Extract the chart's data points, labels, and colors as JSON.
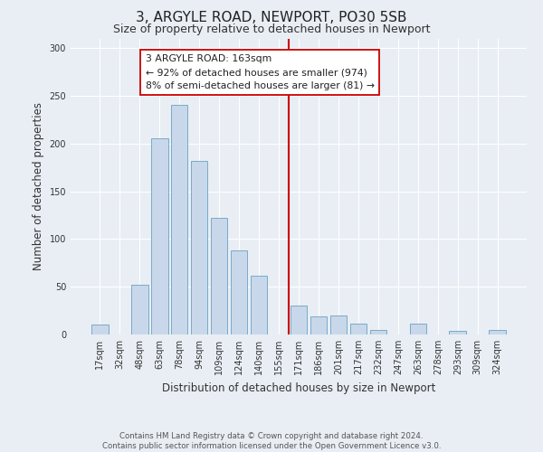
{
  "title": "3, ARGYLE ROAD, NEWPORT, PO30 5SB",
  "subtitle": "Size of property relative to detached houses in Newport",
  "xlabel": "Distribution of detached houses by size in Newport",
  "ylabel": "Number of detached properties",
  "bin_labels": [
    "17sqm",
    "32sqm",
    "48sqm",
    "63sqm",
    "78sqm",
    "94sqm",
    "109sqm",
    "124sqm",
    "140sqm",
    "155sqm",
    "171sqm",
    "186sqm",
    "201sqm",
    "217sqm",
    "232sqm",
    "247sqm",
    "263sqm",
    "278sqm",
    "293sqm",
    "309sqm",
    "324sqm"
  ],
  "bar_values": [
    10,
    0,
    52,
    205,
    240,
    182,
    122,
    88,
    62,
    0,
    30,
    19,
    20,
    11,
    5,
    0,
    11,
    0,
    4,
    0,
    5
  ],
  "bar_color": "#c8d8ea",
  "bar_edge_color": "#7aaac8",
  "vline_x_index": 10,
  "vline_color": "#cc0000",
  "annotation_line1": "3 ARGYLE ROAD: 163sqm",
  "annotation_line2": "← 92% of detached houses are smaller (974)",
  "annotation_line3": "8% of semi-detached houses are larger (81) →",
  "annotation_box_edge_color": "#cc0000",
  "annotation_box_facecolor": "#ffffff",
  "ylim": [
    0,
    310
  ],
  "yticks": [
    0,
    50,
    100,
    150,
    200,
    250,
    300
  ],
  "footer_text": "Contains HM Land Registry data © Crown copyright and database right 2024.\nContains public sector information licensed under the Open Government Licence v3.0.",
  "bg_color": "#e8eef4",
  "plot_bg_color": "#e8eef4",
  "grid_color": "#ffffff"
}
